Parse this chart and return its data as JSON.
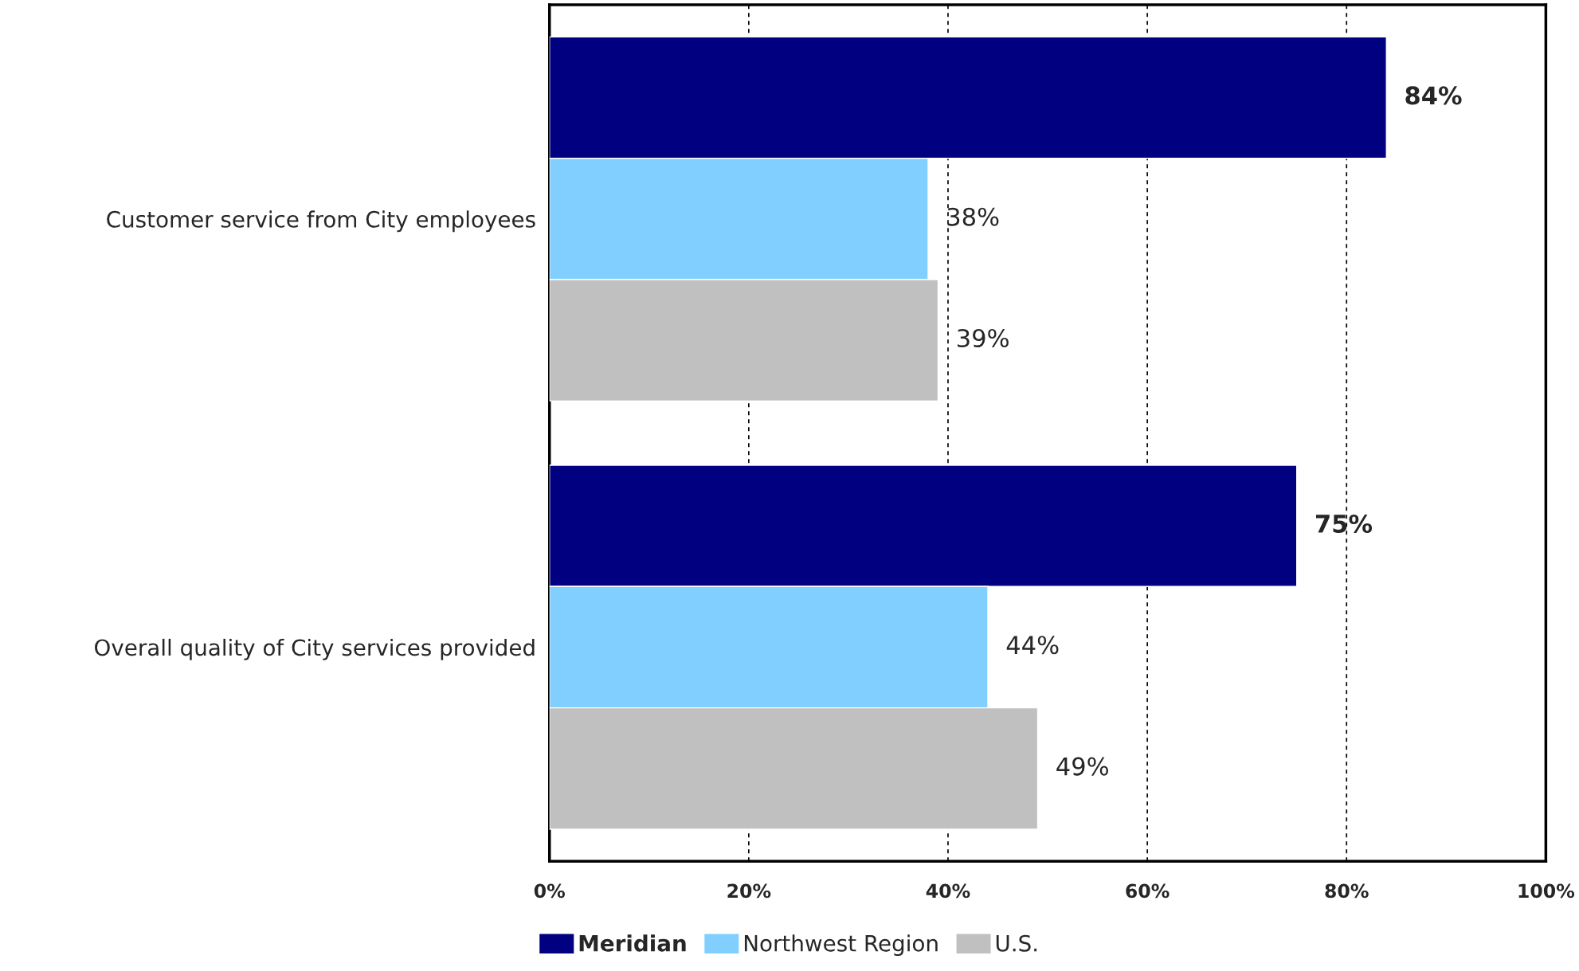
{
  "chart_data": {
    "type": "bar",
    "orientation": "horizontal",
    "categories": [
      "Customer service from City employees",
      "Overall quality of City services provided"
    ],
    "series": [
      {
        "name": "Meridian",
        "color": "#000080",
        "values": [
          84,
          75
        ],
        "value_labels": [
          "84%",
          "75%"
        ]
      },
      {
        "name": "Northwest Region",
        "color": "#80cfff",
        "values": [
          38,
          44
        ],
        "value_labels": [
          "38%",
          "44%"
        ]
      },
      {
        "name": "U.S.",
        "color": "#c0c0c0",
        "values": [
          39,
          49
        ],
        "value_labels": [
          "39%",
          "49%"
        ]
      }
    ],
    "xlim": [
      0,
      100
    ],
    "xticks": [
      {
        "value": 0,
        "label": "0%"
      },
      {
        "value": 20,
        "label": "20%"
      },
      {
        "value": 40,
        "label": "40%"
      },
      {
        "value": 60,
        "label": "60%"
      },
      {
        "value": 80,
        "label": "80%"
      },
      {
        "value": 100,
        "label": "100%"
      }
    ],
    "grid": "x",
    "line_style": "dashed",
    "legend": "bottom"
  }
}
